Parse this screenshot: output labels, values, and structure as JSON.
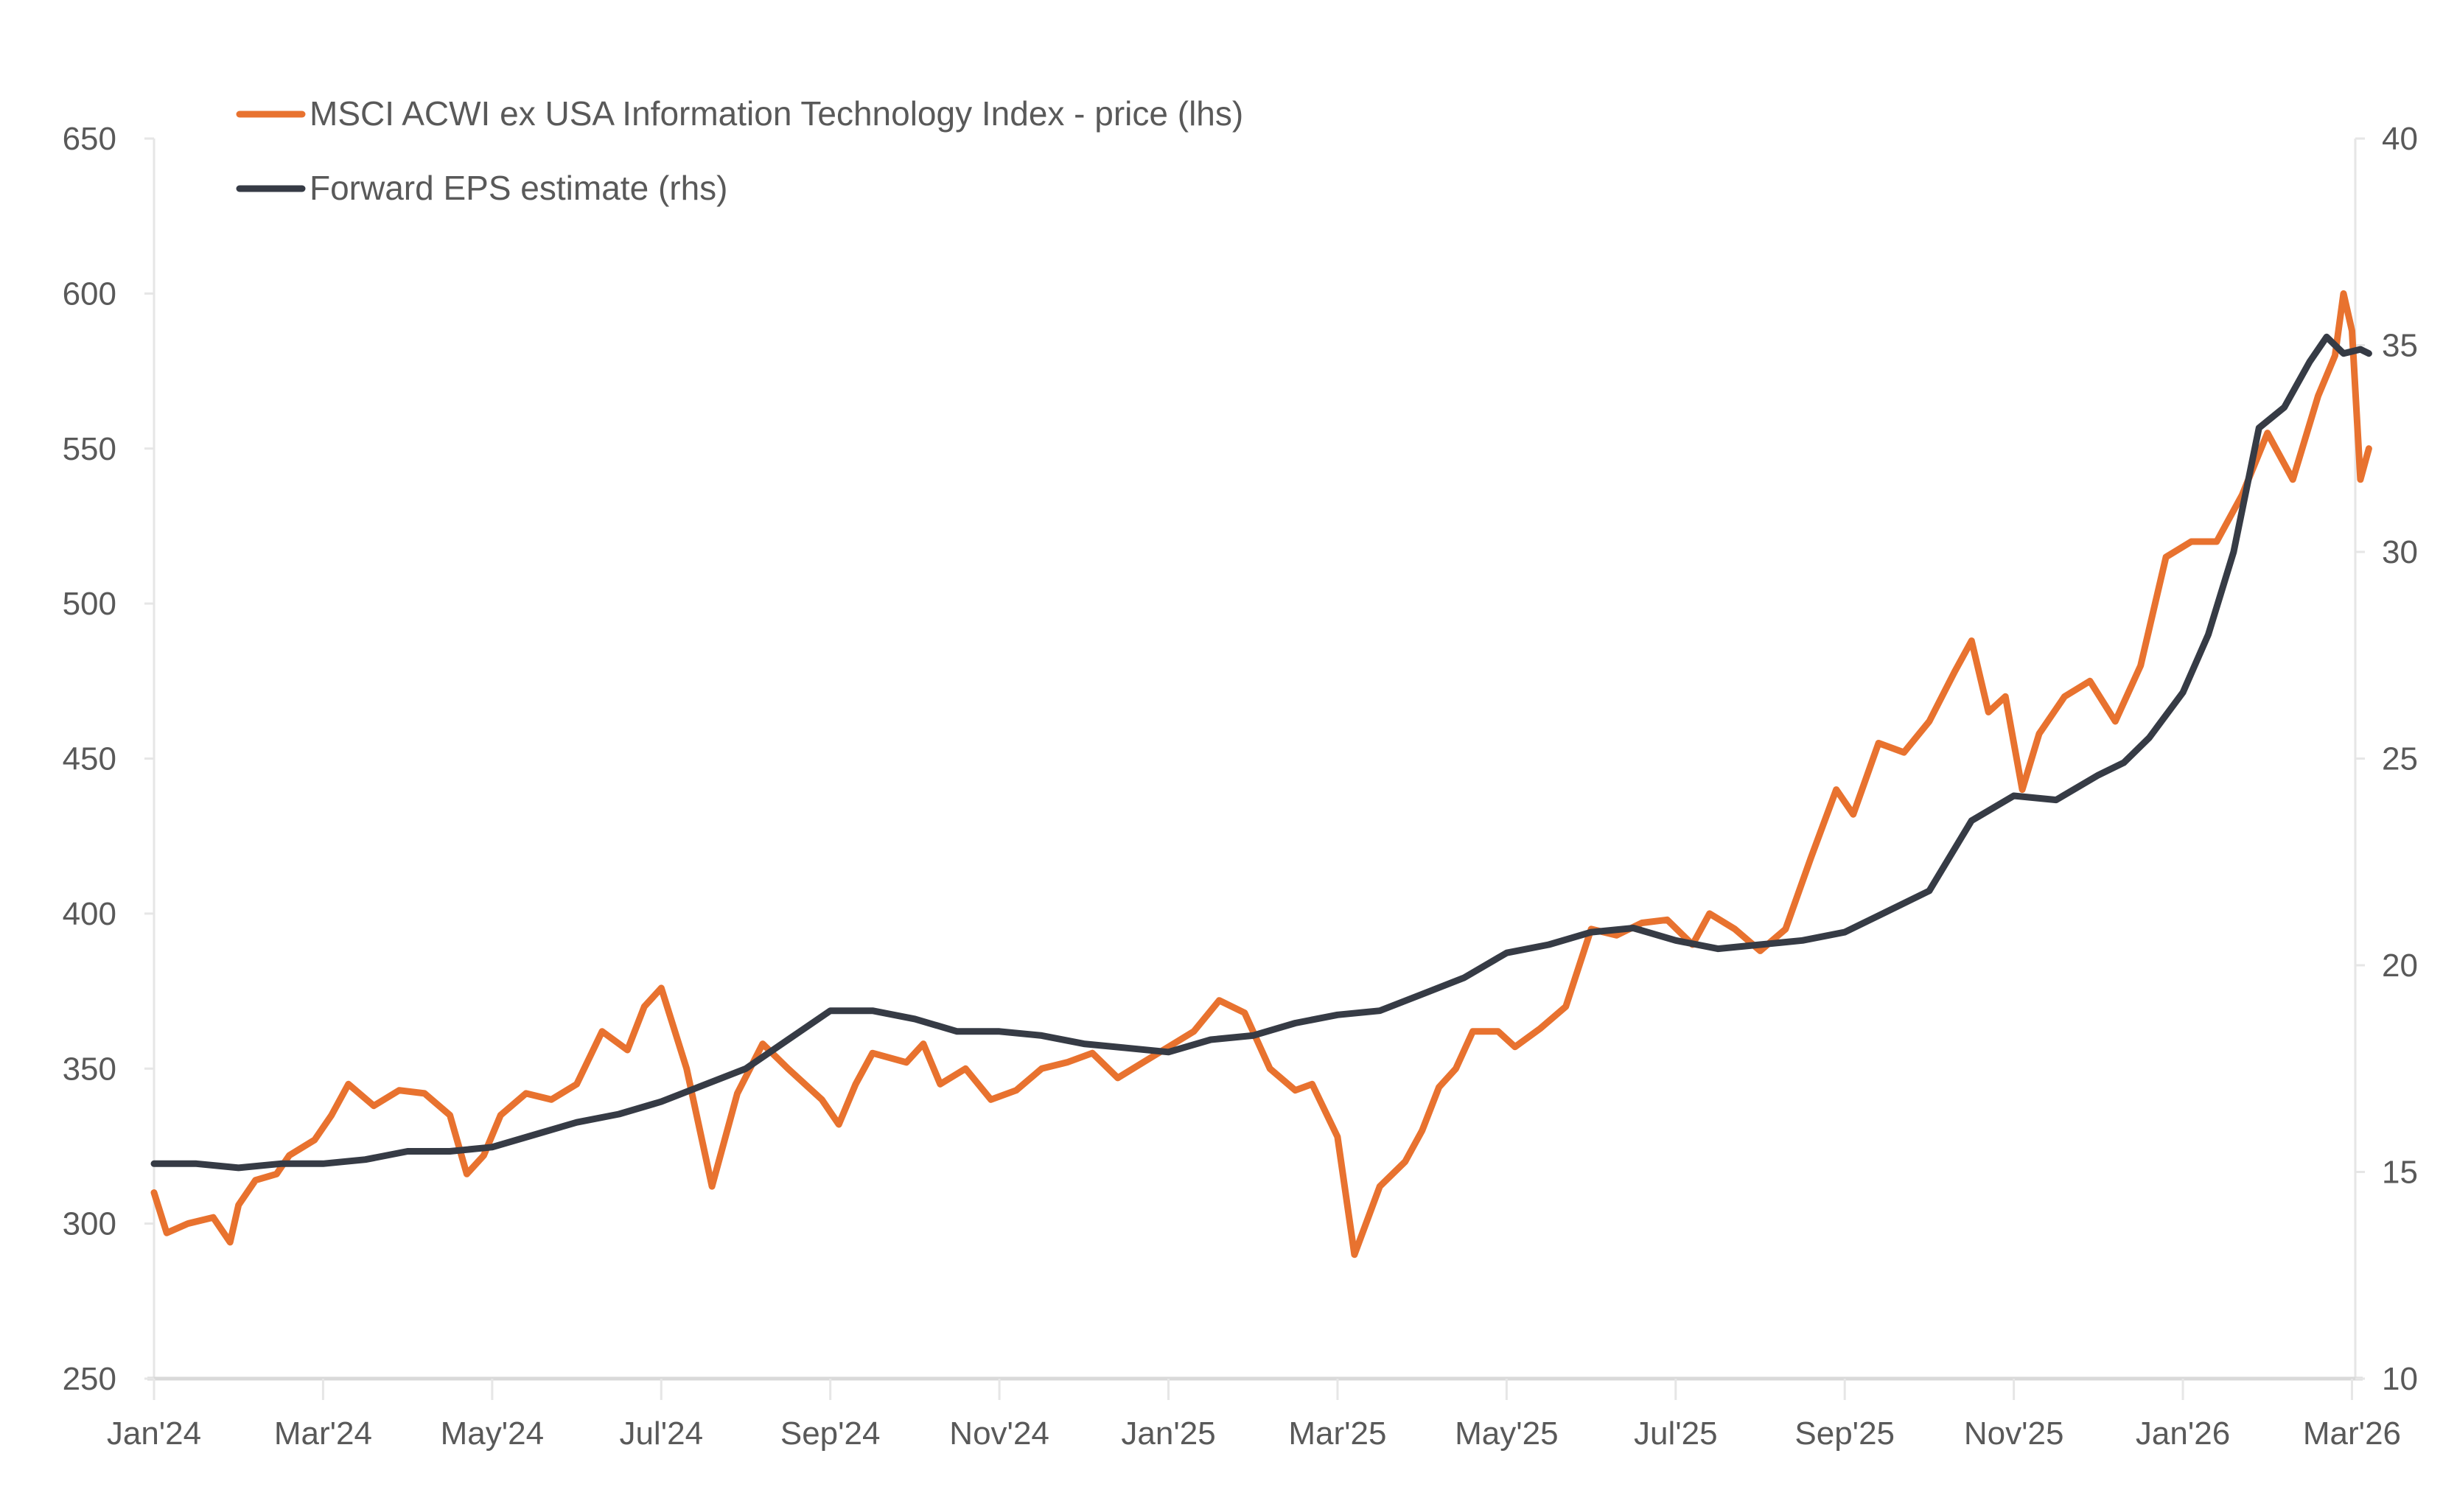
{
  "chart_data": {
    "type": "line",
    "title": "",
    "xlabel": "",
    "ylabel_left": "",
    "ylabel_right": "",
    "x_tick_labels": [
      "Jan'24",
      "Mar'24",
      "May'24",
      "Jul'24",
      "Sep'24",
      "Nov'24",
      "Jan'25",
      "Mar'25",
      "May'25",
      "Jul'25",
      "Sep'25",
      "Nov'25",
      "Jan'26",
      "Mar'26"
    ],
    "x_range_months": [
      0,
      26.2
    ],
    "ylim_left": [
      250,
      650
    ],
    "yticks_left": [
      "250",
      "300",
      "350",
      "400",
      "450",
      "500",
      "550",
      "600",
      "650"
    ],
    "ylim_right": [
      10,
      40
    ],
    "yticks_right": [
      "10",
      "15",
      "20",
      "25",
      "30",
      "35",
      "40"
    ],
    "grid": false,
    "legend_position": "top-left",
    "series": [
      {
        "name": "MSCI ACWI ex USA Information Technology Index - price (lhs)",
        "axis": "left",
        "color": "#E8722F",
        "x_months": [
          0,
          0.15,
          0.4,
          0.7,
          0.9,
          1.0,
          1.2,
          1.45,
          1.6,
          1.9,
          2.1,
          2.3,
          2.6,
          2.9,
          3.2,
          3.5,
          3.7,
          3.9,
          4.1,
          4.4,
          4.7,
          5.0,
          5.3,
          5.6,
          5.8,
          6.0,
          6.3,
          6.6,
          6.9,
          7.2,
          7.5,
          7.9,
          8.1,
          8.3,
          8.5,
          8.9,
          9.1,
          9.3,
          9.6,
          9.9,
          10.2,
          10.5,
          10.8,
          11.1,
          11.4,
          11.7,
          12.0,
          12.3,
          12.6,
          12.9,
          13.2,
          13.5,
          13.7,
          14.0,
          14.2,
          14.5,
          14.8,
          15.0,
          15.2,
          15.4,
          15.6,
          15.9,
          16.1,
          16.4,
          16.7,
          17.0,
          17.3,
          17.6,
          17.9,
          18.2,
          18.4,
          18.7,
          19.0,
          19.3,
          19.6,
          19.9,
          20.1,
          20.4,
          20.7,
          21.0,
          21.3,
          21.5,
          21.7,
          21.9,
          22.1,
          22.3,
          22.6,
          22.9,
          23.2,
          23.5,
          23.8,
          24.1,
          24.4,
          24.7,
          25.0,
          25.3,
          25.6,
          25.8,
          25.9,
          26.0,
          26.1,
          26.2
        ],
        "values": [
          310,
          297,
          300,
          302,
          294,
          306,
          314,
          316,
          322,
          327,
          335,
          345,
          338,
          343,
          342,
          335,
          316,
          322,
          335,
          342,
          340,
          345,
          362,
          356,
          370,
          376,
          350,
          312,
          342,
          358,
          350,
          340,
          332,
          345,
          355,
          352,
          358,
          345,
          350,
          340,
          343,
          350,
          352,
          355,
          347,
          352,
          357,
          362,
          372,
          368,
          350,
          343,
          345,
          328,
          290,
          312,
          320,
          330,
          344,
          350,
          362,
          362,
          357,
          363,
          370,
          395,
          393,
          397,
          398,
          390,
          400,
          395,
          388,
          395,
          418,
          440,
          432,
          455,
          452,
          462,
          478,
          488,
          465,
          470,
          440,
          458,
          470,
          475,
          462,
          480,
          515,
          520,
          520,
          535,
          555,
          540,
          567,
          580,
          600,
          588,
          540,
          550
        ],
        "note": "approximate values read visually"
      },
      {
        "name": "Forward EPS estimate (rhs)",
        "axis": "right",
        "color": "#363B45",
        "x_months": [
          0,
          0.5,
          1.0,
          1.5,
          2.0,
          2.5,
          3.0,
          3.5,
          4.0,
          4.5,
          5.0,
          5.5,
          6.0,
          6.5,
          7.0,
          7.5,
          8.0,
          8.5,
          9.0,
          9.5,
          10.0,
          10.5,
          11.0,
          11.5,
          12.0,
          12.5,
          13.0,
          13.5,
          14.0,
          14.5,
          15.0,
          15.5,
          16.0,
          16.5,
          17.0,
          17.5,
          18.0,
          18.5,
          19.0,
          19.5,
          20.0,
          20.5,
          21.0,
          21.5,
          22.0,
          22.5,
          23.0,
          23.3,
          23.6,
          24.0,
          24.3,
          24.6,
          24.9,
          25.2,
          25.5,
          25.7,
          25.9,
          26.1,
          26.2
        ],
        "values": [
          15.2,
          15.2,
          15.1,
          15.2,
          15.2,
          15.3,
          15.5,
          15.5,
          15.6,
          15.9,
          16.2,
          16.4,
          16.7,
          17.1,
          17.5,
          18.2,
          18.9,
          18.9,
          18.7,
          18.4,
          18.4,
          18.3,
          18.1,
          18.0,
          17.9,
          18.2,
          18.3,
          18.6,
          18.8,
          18.9,
          19.3,
          19.7,
          20.3,
          20.5,
          20.8,
          20.9,
          20.6,
          20.4,
          20.5,
          20.6,
          20.8,
          21.3,
          21.8,
          23.5,
          24.1,
          24.0,
          24.6,
          24.9,
          25.5,
          26.6,
          28.0,
          30.0,
          33.0,
          33.5,
          34.6,
          35.2,
          34.8,
          34.9,
          34.8
        ],
        "note": "approximate values read visually"
      }
    ]
  }
}
